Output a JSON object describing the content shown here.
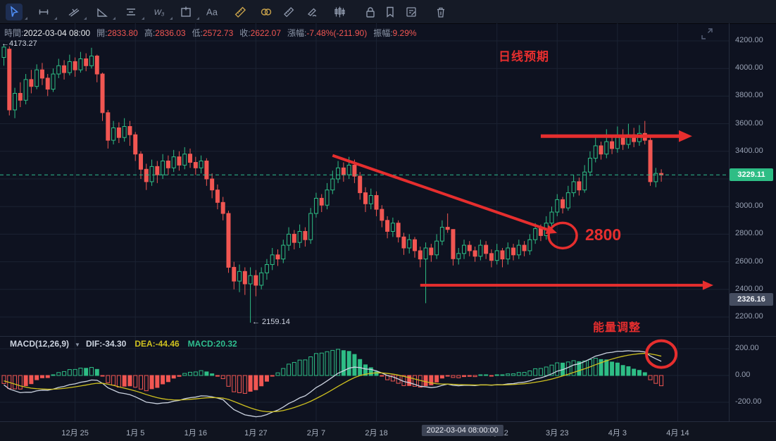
{
  "colors": {
    "up": "#2ebd85",
    "down": "#f15652",
    "accent_red": "#e62e2e",
    "last_price_line": "#2fbe8f",
    "dif_line": "#ccd3e0",
    "dea_line": "#cfc11f",
    "grid": "#1b2232",
    "axis_border": "#262d3d"
  },
  "toolbar": {
    "tools": [
      {
        "name": "cursor-tool",
        "active": true,
        "caret": true
      },
      {
        "name": "trend-line-tool",
        "active": false,
        "caret": true
      },
      {
        "name": "cross-line-tool",
        "active": false,
        "caret": true
      },
      {
        "name": "triangle-tool",
        "active": false,
        "caret": true
      },
      {
        "name": "parallel-channel-tool",
        "active": false,
        "caret": true
      },
      {
        "name": "wave-tool",
        "active": false,
        "caret": true,
        "text": "W₃"
      },
      {
        "name": "box-plus-tool",
        "active": false,
        "caret": true
      },
      {
        "name": "text-tool",
        "active": false,
        "caret": false,
        "text": "Aa"
      },
      {
        "name": "ruler-gold-tool",
        "active": false,
        "caret": false,
        "gold": true
      },
      {
        "name": "rings-gold-tool",
        "active": false,
        "caret": false,
        "gold": true
      },
      {
        "name": "measure-tool",
        "active": false,
        "caret": false
      },
      {
        "name": "brush-tool",
        "active": false,
        "caret": false
      },
      {
        "name": "pattern-tool",
        "active": false,
        "caret": false
      },
      {
        "name": "lock-tool",
        "active": false,
        "caret": false
      },
      {
        "name": "bookmark-tool",
        "active": false,
        "caret": false
      },
      {
        "name": "notes-tool",
        "active": false,
        "caret": false
      },
      {
        "name": "delete-tool",
        "active": false,
        "caret": false
      }
    ]
  },
  "info_bar": {
    "fields": [
      {
        "label": "時間:",
        "value": "2022-03-04 08:00",
        "tone": "white"
      },
      {
        "label": "開:",
        "value": "2833.80",
        "tone": "red"
      },
      {
        "label": "高:",
        "value": "2836.03",
        "tone": "red"
      },
      {
        "label": "低:",
        "value": "2572.73",
        "tone": "red"
      },
      {
        "label": "收:",
        "value": "2622.07",
        "tone": "red"
      },
      {
        "label": "漲幅:",
        "value": "-7.48%(-211.90)",
        "tone": "red"
      },
      {
        "label": "振幅:",
        "value": "9.29%",
        "tone": "red"
      }
    ]
  },
  "chart_data": {
    "type": "candlestick",
    "title": "daily candlestick chart with MACD",
    "y_axis": {
      "ticks": [
        "4200.00",
        "4000.00",
        "3800.00",
        "3600.00",
        "3400.00",
        "3000.00",
        "2800.00",
        "2600.00",
        "2400.00",
        "2200.00"
      ],
      "ylim": [
        2100,
        4250
      ],
      "grid": true
    },
    "last_price": "3229.11",
    "alert_price": "2326.16",
    "x_axis": {
      "labels": [
        {
          "text": "12月 25",
          "index": 13
        },
        {
          "text": "1月 5",
          "index": 24
        },
        {
          "text": "1月 16",
          "index": 35
        },
        {
          "text": "1月 27",
          "index": 46
        },
        {
          "text": "2月 7",
          "index": 57
        },
        {
          "text": "2月 18",
          "index": 68
        },
        {
          "text": "3月 12",
          "index": 90
        },
        {
          "text": "3月 23",
          "index": 101
        },
        {
          "text": "4月 3",
          "index": 112
        },
        {
          "text": "4月 14",
          "index": 123
        }
      ],
      "badge": {
        "text": "2022-03-04 08:00:00",
        "index": 83.7
      }
    },
    "candles": [
      [
        4080,
        4173,
        4020,
        4155
      ],
      [
        4140,
        4160,
        3660,
        3700
      ],
      [
        3700,
        3860,
        3640,
        3820
      ],
      [
        3820,
        3900,
        3720,
        3770
      ],
      [
        3770,
        3960,
        3740,
        3920
      ],
      [
        3920,
        3990,
        3820,
        3870
      ],
      [
        3870,
        4030,
        3850,
        3990
      ],
      [
        3990,
        4040,
        3880,
        3930
      ],
      [
        3930,
        3960,
        3800,
        3850
      ],
      [
        3850,
        4000,
        3830,
        3960
      ],
      [
        3960,
        4070,
        3930,
        4020
      ],
      [
        4020,
        4060,
        3920,
        3970
      ],
      [
        3970,
        4100,
        3950,
        4050
      ],
      [
        4050,
        4080,
        3940,
        3990
      ],
      [
        3990,
        4120,
        3970,
        4070
      ],
      [
        4070,
        4110,
        3980,
        4020
      ],
      [
        4020,
        4150,
        4000,
        4090
      ],
      [
        4090,
        4100,
        3900,
        3960
      ],
      [
        3960,
        3970,
        3620,
        3680
      ],
      [
        3680,
        3700,
        3420,
        3480
      ],
      [
        3480,
        3620,
        3450,
        3570
      ],
      [
        3570,
        3610,
        3460,
        3500
      ],
      [
        3500,
        3640,
        3470,
        3580
      ],
      [
        3580,
        3620,
        3440,
        3520
      ],
      [
        3520,
        3540,
        3330,
        3380
      ],
      [
        3380,
        3400,
        3200,
        3270
      ],
      [
        3270,
        3310,
        3120,
        3180
      ],
      [
        3180,
        3340,
        3150,
        3290
      ],
      [
        3290,
        3330,
        3170,
        3230
      ],
      [
        3230,
        3380,
        3200,
        3330
      ],
      [
        3330,
        3370,
        3230,
        3280
      ],
      [
        3280,
        3410,
        3250,
        3360
      ],
      [
        3360,
        3400,
        3260,
        3300
      ],
      [
        3300,
        3430,
        3270,
        3380
      ],
      [
        3380,
        3420,
        3280,
        3320
      ],
      [
        3320,
        3360,
        3230,
        3280
      ],
      [
        3280,
        3370,
        3240,
        3330
      ],
      [
        3330,
        3350,
        3150,
        3200
      ],
      [
        3200,
        3240,
        3060,
        3120
      ],
      [
        3120,
        3160,
        2980,
        3030
      ],
      [
        3030,
        3070,
        2900,
        2950
      ],
      [
        2950,
        2970,
        2520,
        2560
      ],
      [
        2560,
        2600,
        2400,
        2460
      ],
      [
        2460,
        2580,
        2380,
        2530
      ],
      [
        2530,
        2560,
        2360,
        2440
      ],
      [
        2440,
        2560,
        2159,
        2500
      ],
      [
        2500,
        2540,
        2350,
        2430
      ],
      [
        2430,
        2560,
        2400,
        2520
      ],
      [
        2520,
        2620,
        2470,
        2580
      ],
      [
        2580,
        2700,
        2540,
        2650
      ],
      [
        2650,
        2690,
        2570,
        2620
      ],
      [
        2620,
        2760,
        2590,
        2720
      ],
      [
        2720,
        2850,
        2680,
        2800
      ],
      [
        2800,
        2830,
        2690,
        2740
      ],
      [
        2740,
        2870,
        2700,
        2820
      ],
      [
        2820,
        2850,
        2710,
        2760
      ],
      [
        2760,
        2990,
        2730,
        2950
      ],
      [
        2950,
        3100,
        2920,
        3060
      ],
      [
        3060,
        3090,
        2960,
        3010
      ],
      [
        3010,
        3170,
        2980,
        3120
      ],
      [
        3120,
        3260,
        3090,
        3200
      ],
      [
        3200,
        3330,
        3170,
        3280
      ],
      [
        3280,
        3320,
        3180,
        3230
      ],
      [
        3230,
        3360,
        3200,
        3300
      ],
      [
        3300,
        3340,
        3170,
        3220
      ],
      [
        3220,
        3250,
        3050,
        3100
      ],
      [
        3100,
        3140,
        2960,
        3020
      ],
      [
        3020,
        3130,
        2980,
        3080
      ],
      [
        3080,
        3110,
        2930,
        2980
      ],
      [
        2980,
        3010,
        2850,
        2900
      ],
      [
        2900,
        2930,
        2770,
        2820
      ],
      [
        2820,
        2920,
        2780,
        2880
      ],
      [
        2880,
        2900,
        2740,
        2780
      ],
      [
        2780,
        2810,
        2650,
        2700
      ],
      [
        2700,
        2800,
        2660,
        2760
      ],
      [
        2760,
        2780,
        2630,
        2680
      ],
      [
        2680,
        2710,
        2560,
        2620
      ],
      [
        2620,
        2740,
        2300,
        2700
      ],
      [
        2700,
        2730,
        2600,
        2650
      ],
      [
        2650,
        2800,
        2620,
        2750
      ],
      [
        2750,
        2900,
        2720,
        2850
      ],
      [
        2850,
        2950,
        2810,
        2834
      ],
      [
        2834,
        2836,
        2573,
        2622
      ],
      [
        2622,
        2700,
        2580,
        2660
      ],
      [
        2660,
        2760,
        2620,
        2720
      ],
      [
        2720,
        2750,
        2640,
        2680
      ],
      [
        2680,
        2710,
        2600,
        2640
      ],
      [
        2640,
        2760,
        2610,
        2720
      ],
      [
        2720,
        2750,
        2620,
        2660
      ],
      [
        2660,
        2690,
        2560,
        2610
      ],
      [
        2610,
        2730,
        2580,
        2680
      ],
      [
        2680,
        2700,
        2560,
        2620
      ],
      [
        2620,
        2740,
        2580,
        2700
      ],
      [
        2700,
        2730,
        2610,
        2650
      ],
      [
        2650,
        2760,
        2620,
        2720
      ],
      [
        2720,
        2750,
        2640,
        2680
      ],
      [
        2680,
        2800,
        2650,
        2760
      ],
      [
        2760,
        2880,
        2730,
        2840
      ],
      [
        2840,
        2870,
        2750,
        2790
      ],
      [
        2790,
        2930,
        2760,
        2880
      ],
      [
        2880,
        3000,
        2850,
        2960
      ],
      [
        2960,
        3090,
        2930,
        3050
      ],
      [
        3050,
        3070,
        2950,
        2990
      ],
      [
        2990,
        3150,
        2970,
        3100
      ],
      [
        3100,
        3230,
        3070,
        3180
      ],
      [
        3180,
        3210,
        3080,
        3120
      ],
      [
        3120,
        3300,
        3100,
        3250
      ],
      [
        3250,
        3400,
        3220,
        3350
      ],
      [
        3350,
        3500,
        3320,
        3440
      ],
      [
        3440,
        3470,
        3340,
        3380
      ],
      [
        3380,
        3560,
        3350,
        3470
      ],
      [
        3470,
        3520,
        3380,
        3420
      ],
      [
        3420,
        3580,
        3390,
        3500
      ],
      [
        3500,
        3560,
        3410,
        3450
      ],
      [
        3450,
        3600,
        3420,
        3520
      ],
      [
        3520,
        3570,
        3430,
        3470
      ],
      [
        3470,
        3590,
        3440,
        3530
      ],
      [
        3530,
        3620,
        3450,
        3480
      ],
      [
        3480,
        3510,
        3150,
        3180
      ],
      [
        3180,
        3280,
        3140,
        3240
      ],
      [
        3240,
        3270,
        3180,
        3229.11
      ]
    ],
    "macd": {
      "params": "MACD(12,26,9)",
      "dif_label": "DIF:-34.30",
      "dea_label": "DEA:-44.46",
      "macd_label": "MACD:20.32",
      "axis_ticks": [
        "200.00",
        "0.00",
        "-200.00"
      ]
    },
    "annotations": {
      "high_label": {
        "text": "←4173.27",
        "price": 4173.27,
        "index": 0
      },
      "low_label": {
        "text": "← 2159.14",
        "price": 2159.14,
        "index": 45
      },
      "expectation_label": {
        "text": "日线预期"
      },
      "level_label": {
        "text": "2800"
      },
      "energy_label": {
        "text": "能量调整"
      },
      "trend_arrow": {
        "from_index": 60,
        "from_price": 3370,
        "to_index": 100.5,
        "to_price": 2815
      },
      "resistance_arrow": {
        "price": 3510,
        "from_index": 98,
        "to_index": 125
      },
      "support_arrow": {
        "price": 2430,
        "from_index": 76,
        "to_index": 129
      },
      "price_circle": {
        "index": 102,
        "price": 2790
      },
      "macd_circle": {
        "index": 120,
        "value": 160
      }
    }
  }
}
